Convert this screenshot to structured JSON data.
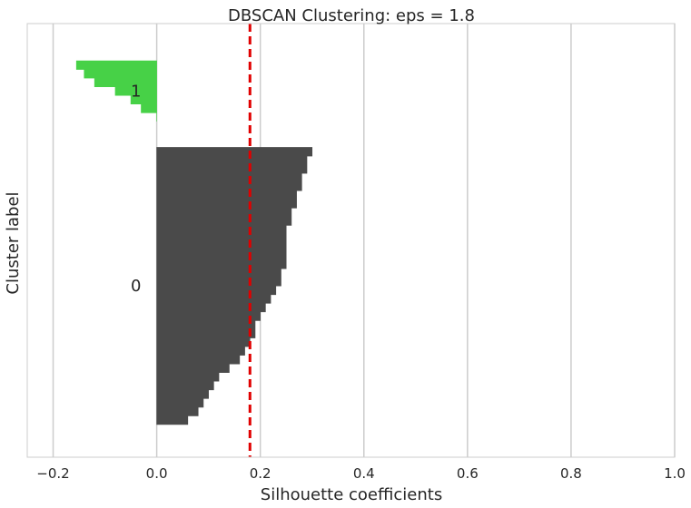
{
  "chart_data": {
    "type": "silhouette",
    "title": "DBSCAN Clustering: eps = 1.8",
    "xlabel": "Silhouette coefficients",
    "ylabel": "Cluster label",
    "xlim": [
      -0.25,
      1.0
    ],
    "xticks": [
      -0.2,
      0.0,
      0.2,
      0.4,
      0.6,
      0.8,
      1.0
    ],
    "xtick_labels": [
      "−0.2",
      "0.0",
      "0.2",
      "0.4",
      "0.6",
      "0.8",
      "1.0"
    ],
    "grid": "vertical",
    "silhouette_average": 0.18,
    "colors": {
      "cluster_0": "#4a4a4a",
      "cluster_1": "#47d147",
      "average_line": "#e00000",
      "grid": "#cccccc",
      "frame": "#cccccc"
    },
    "clusters": [
      {
        "label": "0",
        "start": 10,
        "values": [
          0.3,
          0.29,
          0.29,
          0.28,
          0.28,
          0.27,
          0.27,
          0.26,
          0.26,
          0.25,
          0.25,
          0.25,
          0.25,
          0.25,
          0.24,
          0.24,
          0.23,
          0.22,
          0.21,
          0.2,
          0.19,
          0.19,
          0.18,
          0.17,
          0.16,
          0.14,
          0.12,
          0.11,
          0.1,
          0.09,
          0.08,
          0.06
        ]
      },
      {
        "label": "1",
        "start": 0,
        "values": [
          -0.155,
          -0.14,
          -0.12,
          -0.08,
          -0.05,
          -0.03,
          0.0
        ]
      }
    ]
  }
}
